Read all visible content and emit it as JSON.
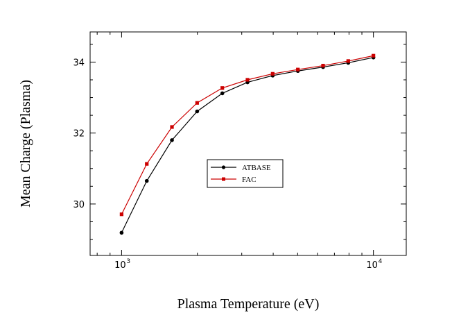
{
  "chart_data": {
    "type": "line",
    "xlabel": "Plasma Temperature (eV)",
    "ylabel": "Mean Charge (Plasma)",
    "xscale": "log",
    "xlim": [
      750,
      13500
    ],
    "ylim": [
      28.55,
      34.85
    ],
    "grid": false,
    "legend_position": "center",
    "x_ticks": [
      {
        "value": 1000,
        "base": "10",
        "exp": "3"
      },
      {
        "value": 10000,
        "base": "10",
        "exp": "4"
      }
    ],
    "y_ticks": [
      {
        "value": 30,
        "label": "30"
      },
      {
        "value": 32,
        "label": "32"
      },
      {
        "value": 34,
        "label": "34"
      }
    ],
    "series": [
      {
        "name": "ATBASE",
        "color": "#000000",
        "marker": "circle",
        "x": [
          1000,
          1259,
          1585,
          1995,
          2512,
          3162,
          3981,
          5012,
          6310,
          7943,
          10000
        ],
        "y": [
          29.19,
          30.65,
          31.8,
          32.61,
          33.12,
          33.43,
          33.62,
          33.75,
          33.86,
          33.98,
          34.13
        ]
      },
      {
        "name": "FAC",
        "color": "#cc0000",
        "marker": "square",
        "x": [
          1000,
          1259,
          1585,
          1995,
          2512,
          3162,
          3981,
          5012,
          6310,
          7943,
          10000
        ],
        "y": [
          29.71,
          31.13,
          32.17,
          32.85,
          33.27,
          33.5,
          33.67,
          33.79,
          33.9,
          34.03,
          34.18
        ]
      }
    ]
  }
}
